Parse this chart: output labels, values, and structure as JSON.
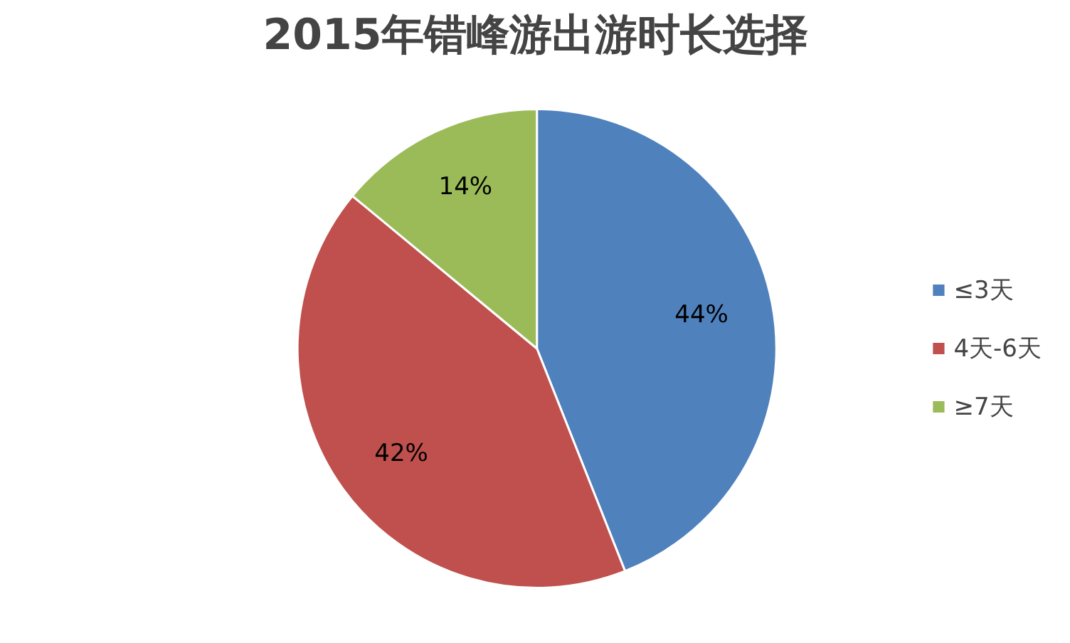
{
  "chart_data": {
    "type": "pie",
    "title": "2015年错峰游出游时长选择",
    "categories": [
      "≤3天",
      "4天-6天",
      "≥7天"
    ],
    "values": [
      44,
      42,
      14
    ],
    "colors": [
      "#4f81bd",
      "#c0504d",
      "#9bbb59"
    ],
    "value_labels": [
      "44%",
      "42%",
      "14%"
    ],
    "legend": "right"
  }
}
